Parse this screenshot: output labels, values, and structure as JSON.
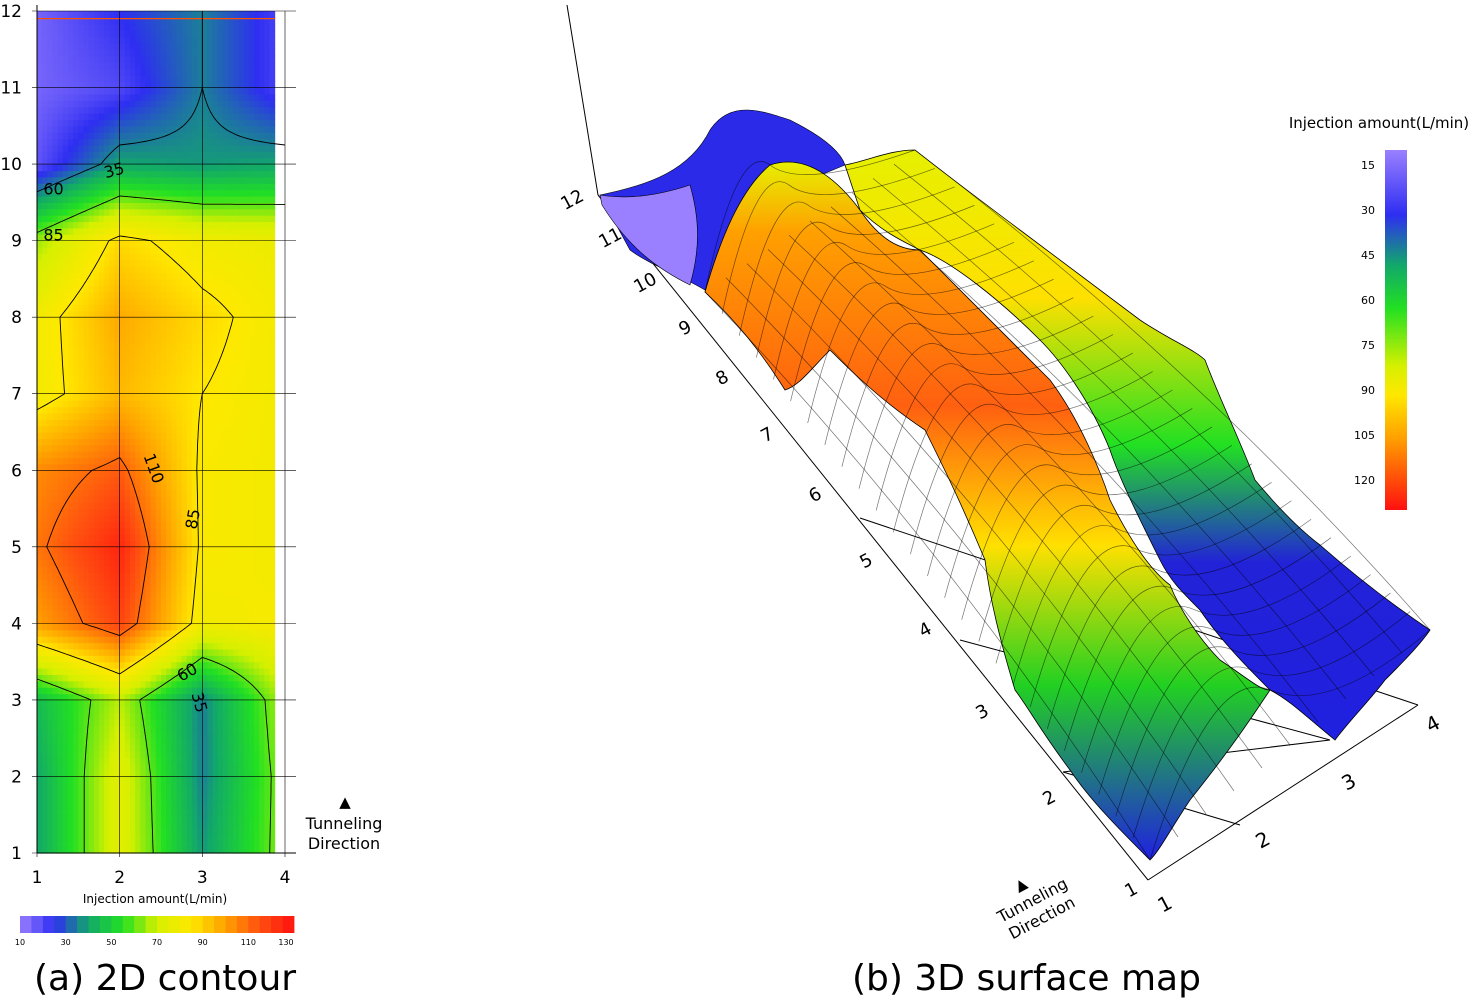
{
  "captions": {
    "a": "(a) 2D contour",
    "b": "(b) 3D surface map"
  },
  "chart_data": [
    {
      "type": "heatmap",
      "title": "(a) 2D contour",
      "xlabel": "Injection amount(L/min)",
      "x_ticks": [
        "1",
        "2",
        "3",
        "4"
      ],
      "y_ticks": [
        "1",
        "2",
        "3",
        "4",
        "5",
        "6",
        "7",
        "8",
        "9",
        "10",
        "11",
        "12"
      ],
      "xlim": [
        1,
        4
      ],
      "ylim": [
        1,
        12
      ],
      "grid": true,
      "values_by_row_y1_to_y12": [
        [
          40,
          75,
          38,
          65
        ],
        [
          40,
          75,
          35,
          65
        ],
        [
          45,
          68,
          35,
          68
        ],
        [
          100,
          118,
          80,
          82
        ],
        [
          108,
          125,
          83,
          80
        ],
        [
          104,
          113,
          83,
          80
        ],
        [
          80,
          95,
          85,
          80
        ],
        [
          80,
          98,
          88,
          80
        ],
        [
          65,
          88,
          80,
          78
        ],
        [
          18,
          40,
          38,
          40
        ],
        [
          15,
          20,
          35,
          20
        ],
        [
          15,
          25,
          35,
          20
        ]
      ],
      "contour_labels": [
        "35",
        "60",
        "85",
        "110",
        "85",
        "60",
        "35"
      ],
      "colorbar": {
        "ticks": [
          "10",
          "30",
          "50",
          "70",
          "90",
          "110",
          "130"
        ],
        "range": [
          10,
          130
        ]
      },
      "annotation": {
        "arrow": "▲",
        "line1": "Tunneling",
        "line2": "Direction"
      }
    },
    {
      "type": "surface",
      "title": "(b) 3D surface map",
      "x_ticks": [
        "1",
        "2",
        "3",
        "4"
      ],
      "y_ticks": [
        "1",
        "2",
        "3",
        "4",
        "5",
        "6",
        "7",
        "8",
        "9",
        "10",
        "11",
        "12"
      ],
      "legend_title": "Injection amount(L/min)",
      "colorbar": {
        "ticks": [
          "15",
          "30",
          "45",
          "60",
          "75",
          "90",
          "105",
          "120"
        ],
        "range": [
          10,
          130
        ]
      },
      "annotation": {
        "arrow": "▲",
        "line1": "Tunneling",
        "line2": "Direction"
      }
    }
  ],
  "palette": [
    "#9a80ff",
    "#2e2ef2",
    "#12a86a",
    "#22e022",
    "#d6f000",
    "#ffe800",
    "#ffa000",
    "#ff5010",
    "#ff1010"
  ]
}
